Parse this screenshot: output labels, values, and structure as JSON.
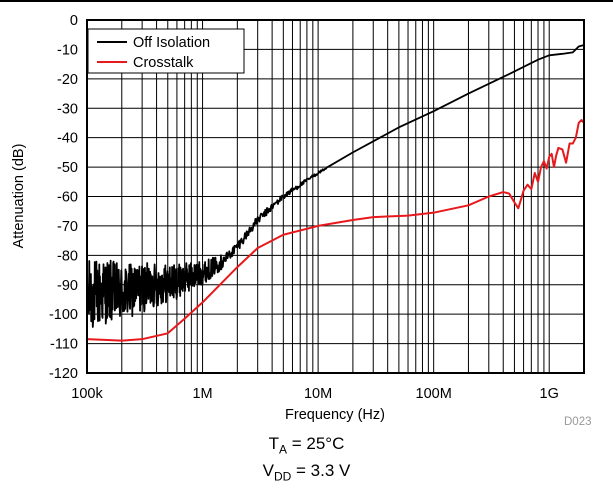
{
  "chart_data": {
    "type": "line",
    "xlabel": "Frequency (Hz)",
    "ylabel": "Attenuation (dB)",
    "xscale": "log",
    "xlim": [
      100000,
      2000000000
    ],
    "ylim": [
      -120,
      0
    ],
    "x_ticks": [
      {
        "value": 100000,
        "label": "100k"
      },
      {
        "value": 1000000,
        "label": "1M"
      },
      {
        "value": 10000000,
        "label": "10M"
      },
      {
        "value": 100000000,
        "label": "100M"
      },
      {
        "value": 1000000000,
        "label": "1G"
      }
    ],
    "y_ticks": [
      0,
      -10,
      -20,
      -30,
      -40,
      -50,
      -60,
      -70,
      -80,
      -90,
      -100,
      -110,
      -120
    ],
    "grid": true,
    "legend_position": "top-left",
    "series": [
      {
        "name": "Off Isolation",
        "color": "#000000",
        "noisy_below_hz": 1500000,
        "points": [
          [
            100000,
            -94
          ],
          [
            150000,
            -92
          ],
          [
            200000,
            -93
          ],
          [
            300000,
            -91
          ],
          [
            400000,
            -90
          ],
          [
            600000,
            -89
          ],
          [
            800000,
            -87
          ],
          [
            1000000,
            -86
          ],
          [
            1500000,
            -82
          ],
          [
            2000000,
            -77
          ],
          [
            3000000,
            -68
          ],
          [
            5000000,
            -60
          ],
          [
            8000000,
            -54.5
          ],
          [
            10000000,
            -52
          ],
          [
            20000000,
            -45
          ],
          [
            50000000,
            -36.5
          ],
          [
            100000000,
            -31
          ],
          [
            200000000,
            -25
          ],
          [
            500000000,
            -17.5
          ],
          [
            800000000,
            -13.5
          ],
          [
            1000000000,
            -12
          ],
          [
            1300000000,
            -11.5
          ],
          [
            1600000000,
            -11
          ],
          [
            1800000000,
            -9
          ],
          [
            2000000000,
            -8.5
          ]
        ]
      },
      {
        "name": "Crosstalk",
        "color": "#e8191c",
        "points": [
          [
            100000,
            -108.5
          ],
          [
            200000,
            -109
          ],
          [
            300000,
            -108.5
          ],
          [
            500000,
            -106.5
          ],
          [
            700000,
            -101.5
          ],
          [
            1000000,
            -96
          ],
          [
            2000000,
            -84
          ],
          [
            3000000,
            -77.5
          ],
          [
            5000000,
            -73
          ],
          [
            10000000,
            -70
          ],
          [
            20000000,
            -68
          ],
          [
            30000000,
            -67
          ],
          [
            60000000,
            -66.5
          ],
          [
            100000000,
            -65.5
          ],
          [
            200000000,
            -63
          ],
          [
            300000000,
            -60
          ],
          [
            400000000,
            -58.5
          ],
          [
            450000000,
            -59
          ],
          [
            500000000,
            -62
          ],
          [
            540000000,
            -64
          ],
          [
            570000000,
            -61
          ],
          [
            600000000,
            -58
          ],
          [
            650000000,
            -56
          ],
          [
            700000000,
            -57.5
          ],
          [
            750000000,
            -52
          ],
          [
            800000000,
            -55
          ],
          [
            850000000,
            -50
          ],
          [
            900000000,
            -48
          ],
          [
            950000000,
            -50.5
          ],
          [
            1000000000,
            -46.5
          ],
          [
            1050000000,
            -45.5
          ],
          [
            1100000000,
            -50
          ],
          [
            1150000000,
            -46
          ],
          [
            1200000000,
            -43.5
          ],
          [
            1300000000,
            -44
          ],
          [
            1400000000,
            -48.5
          ],
          [
            1500000000,
            -42
          ],
          [
            1600000000,
            -42
          ],
          [
            1700000000,
            -40
          ],
          [
            1800000000,
            -35
          ],
          [
            1900000000,
            -34
          ],
          [
            2000000000,
            -35
          ]
        ]
      }
    ]
  },
  "figure_id": "D023",
  "conditions": {
    "temp": {
      "symbol": "T",
      "sub": "A",
      "value": " = 25°C"
    },
    "supply": {
      "symbol": "V",
      "sub": "DD",
      "value": " = 3.3 V"
    }
  }
}
